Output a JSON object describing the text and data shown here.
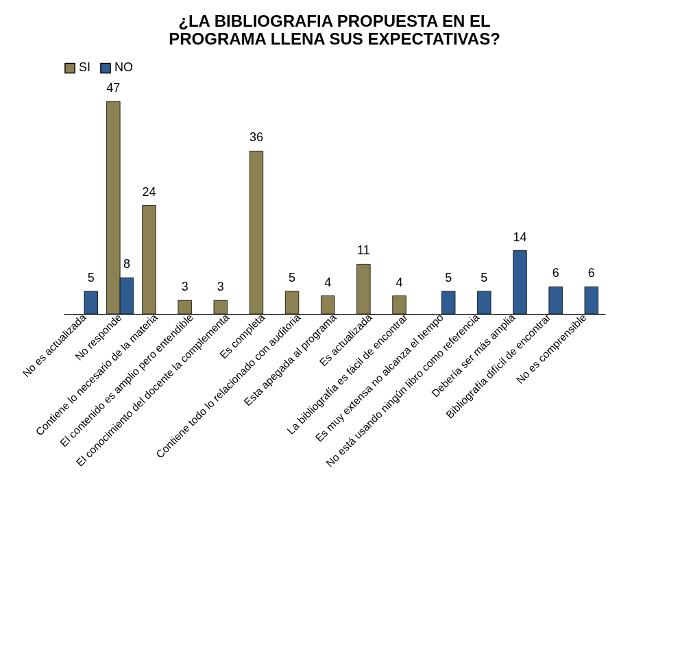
{
  "chart_data": {
    "type": "bar",
    "title": "¿LA BIBLIOGRAFIA PROPUESTA  EN EL PROGRAMA LLENA SUS EXPECTATIVAS?",
    "categories": [
      "No es actualizada",
      "No responde",
      "Contiene lo necesario de la materia",
      "El contenido es amplio pero entendible",
      "El conocimiento del docente la complementa",
      "Es completa",
      "Contiene todo lo relacionado con auditoria",
      "Esta apegada al programa",
      "Es actualizada",
      "La bibliografía es fácil de encontrar",
      "Es muy extensa no alcanza el tiempo",
      "No está usando ningún libro como referencia",
      "Debería ser más amplia",
      "Bibliografía difícil de encontrar",
      "No es comprensible"
    ],
    "series": [
      {
        "name": "SI",
        "color": "#8c8152",
        "values": [
          null,
          47,
          24,
          3,
          3,
          36,
          5,
          4,
          11,
          4,
          null,
          null,
          null,
          null,
          null
        ]
      },
      {
        "name": "NO",
        "color": "#2f5d92",
        "values": [
          5,
          8,
          null,
          null,
          null,
          null,
          null,
          null,
          null,
          null,
          5,
          5,
          14,
          6,
          6
        ]
      }
    ],
    "data_labels": true,
    "legend": "top"
  }
}
